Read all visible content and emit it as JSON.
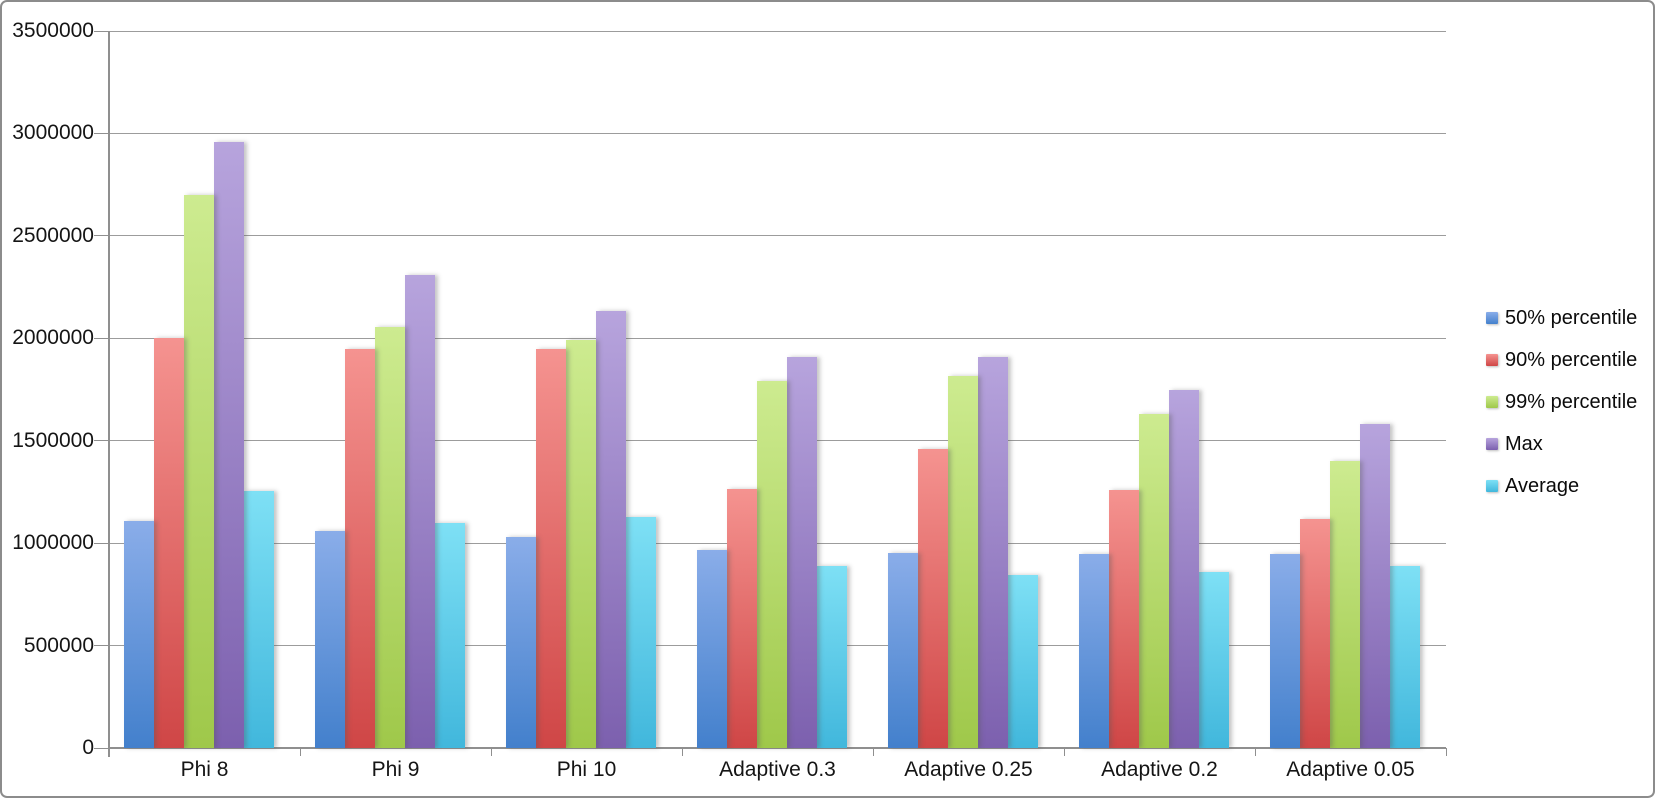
{
  "window": {
    "background": "#ffffff",
    "border_color": "#8c8c8c"
  },
  "chart_data": {
    "type": "bar",
    "title": "",
    "xlabel": "",
    "ylabel": "",
    "categories": [
      "Phi 8",
      "Phi 9",
      "Phi 10",
      "Adaptive 0.3",
      "Adaptive 0.25",
      "Adaptive 0.2",
      "Adaptive 0.05"
    ],
    "series": [
      {
        "name": "50% percentile",
        "color": "#4f86d3",
        "gradient_top": "#8aade9",
        "gradient_bottom": "#4380cc",
        "values": [
          1110000,
          1060000,
          1030000,
          965000,
          950000,
          945000,
          945000
        ]
      },
      {
        "name": "90% percentile",
        "color": "#dd5a5a",
        "gradient_top": "#f59390",
        "gradient_bottom": "#cf4646",
        "values": [
          2000000,
          1950000,
          1950000,
          1265000,
          1460000,
          1260000,
          1120000
        ]
      },
      {
        "name": "99% percentile",
        "color": "#aed45e",
        "gradient_top": "#cdeb90",
        "gradient_bottom": "#9fc84a",
        "values": [
          2700000,
          2055000,
          1990000,
          1790000,
          1815000,
          1630000,
          1400000
        ]
      },
      {
        "name": "Max",
        "color": "#9678c2",
        "gradient_top": "#b7a4dd",
        "gradient_bottom": "#7c60ae",
        "values": [
          2960000,
          2310000,
          2135000,
          1910000,
          1910000,
          1750000,
          1580000
        ]
      },
      {
        "name": "Average",
        "color": "#55c8ea",
        "gradient_top": "#7ee0f5",
        "gradient_bottom": "#41b7dc",
        "values": [
          1255000,
          1100000,
          1130000,
          890000,
          845000,
          860000,
          890000
        ]
      }
    ],
    "ylim": [
      0,
      3500000
    ],
    "ytick_step": 500000,
    "ytick_labels": [
      "0",
      "500000",
      "1000000",
      "1500000",
      "2000000",
      "2500000",
      "3000000",
      "3500000"
    ],
    "grid": true,
    "legend_position": "right",
    "grid_color": "#9c9c9c",
    "axis_color": "#8f8f8f",
    "text_color": "#151515"
  }
}
